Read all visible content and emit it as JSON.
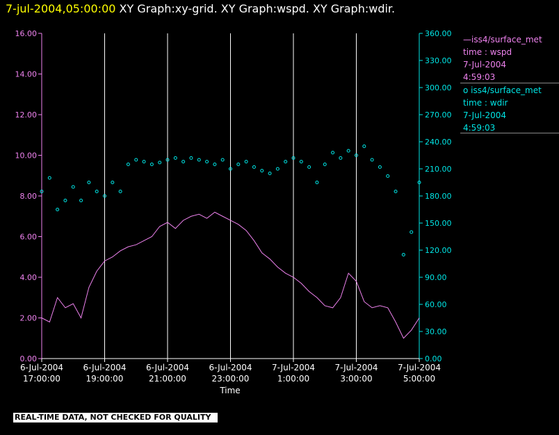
{
  "header": {
    "timestamp": "7-jul-2004,05:00:00",
    "graphs": "XY Graph:xy-grid.  XY Graph:wspd.  XY Graph:wdir."
  },
  "colors": {
    "wspd": "#ee82ee",
    "wdir": "#00e5e5",
    "axis": "#ffffff",
    "timestamp": "#ffff00"
  },
  "legend": {
    "wspd": {
      "symbol": "—",
      "name": "iss4/surface_met",
      "var": "time : wspd",
      "date": "7-Jul-2004",
      "time": "4:59:03"
    },
    "wdir": {
      "symbol": "o",
      "name": "iss4/surface_met",
      "var": "time : wdir",
      "date": "7-Jul-2004",
      "time": "4:59:03"
    }
  },
  "footer": {
    "quality_note": "REAL-TIME DATA, NOT CHECKED FOR QUALITY"
  },
  "chart_data": {
    "type": "line",
    "xlabel": "Time",
    "x_ticks": [
      [
        "6-Jul-2004",
        "17:00:00"
      ],
      [
        "6-Jul-2004",
        "19:00:00"
      ],
      [
        "6-Jul-2004",
        "21:00:00"
      ],
      [
        "6-Jul-2004",
        "23:00:00"
      ],
      [
        "7-Jul-2004",
        "1:00:00"
      ],
      [
        "7-Jul-2004",
        "3:00:00"
      ],
      [
        "7-Jul-2004",
        "5:00:00"
      ]
    ],
    "x_range_hours": [
      0,
      12
    ],
    "y_left": {
      "ticks": [
        "0.00",
        "2.00",
        "4.00",
        "6.00",
        "8.00",
        "10.00",
        "12.00",
        "14.00",
        "16.00"
      ],
      "ylim": [
        0,
        16
      ]
    },
    "y_right": {
      "ticks": [
        "0.00",
        "30.00",
        "60.00",
        "90.00",
        "120.00",
        "150.00",
        "180.00",
        "210.00",
        "240.00",
        "270.00",
        "300.00",
        "330.00",
        "360.00"
      ],
      "ylim": [
        0,
        360
      ]
    },
    "grid": "vertical",
    "series": [
      {
        "name": "iss4/surface_met",
        "variable": "wspd",
        "axis": "left",
        "style": "line",
        "x": [
          0,
          0.25,
          0.5,
          0.75,
          1,
          1.25,
          1.5,
          1.75,
          2,
          2.25,
          2.5,
          2.75,
          3,
          3.25,
          3.5,
          3.75,
          4,
          4.25,
          4.5,
          4.75,
          5,
          5.25,
          5.5,
          5.75,
          6,
          6.25,
          6.5,
          6.75,
          7,
          7.25,
          7.5,
          7.75,
          8,
          8.25,
          8.5,
          8.75,
          9,
          9.25,
          9.5,
          9.75,
          10,
          10.25,
          10.5,
          10.75,
          11,
          11.25,
          11.5,
          11.75,
          12
        ],
        "y": [
          2.0,
          1.8,
          3.0,
          2.5,
          2.7,
          2.0,
          3.5,
          4.3,
          4.8,
          5.0,
          5.3,
          5.5,
          5.6,
          5.8,
          6.0,
          6.5,
          6.7,
          6.4,
          6.8,
          7.0,
          7.1,
          6.9,
          7.2,
          7.0,
          6.8,
          6.6,
          6.3,
          5.8,
          5.2,
          4.9,
          4.5,
          4.2,
          4.0,
          3.7,
          3.3,
          3.0,
          2.6,
          2.5,
          3.0,
          4.2,
          3.8,
          2.8,
          2.5,
          2.6,
          2.5,
          1.8,
          1.0,
          1.4,
          2.0
        ]
      },
      {
        "name": "iss4/surface_met",
        "variable": "wdir",
        "axis": "right",
        "style": "scatter",
        "x": [
          0,
          0.25,
          0.5,
          0.75,
          1,
          1.25,
          1.5,
          1.75,
          2,
          2.25,
          2.5,
          2.75,
          3,
          3.25,
          3.5,
          3.75,
          4,
          4.25,
          4.5,
          4.75,
          5,
          5.25,
          5.5,
          5.75,
          6,
          6.25,
          6.5,
          6.75,
          7,
          7.25,
          7.5,
          7.75,
          8,
          8.25,
          8.5,
          8.75,
          9,
          9.25,
          9.5,
          9.75,
          10,
          10.25,
          10.5,
          10.75,
          11,
          11.25,
          11.5,
          11.75,
          12
        ],
        "y": [
          185,
          200,
          165,
          175,
          190,
          175,
          195,
          185,
          180,
          195,
          185,
          215,
          220,
          218,
          215,
          217,
          220,
          222,
          218,
          222,
          220,
          218,
          215,
          220,
          210,
          215,
          218,
          212,
          208,
          205,
          210,
          218,
          222,
          218,
          212,
          195,
          215,
          228,
          222,
          230,
          225,
          235,
          220,
          212,
          202,
          185,
          115,
          140,
          195
        ]
      }
    ]
  }
}
